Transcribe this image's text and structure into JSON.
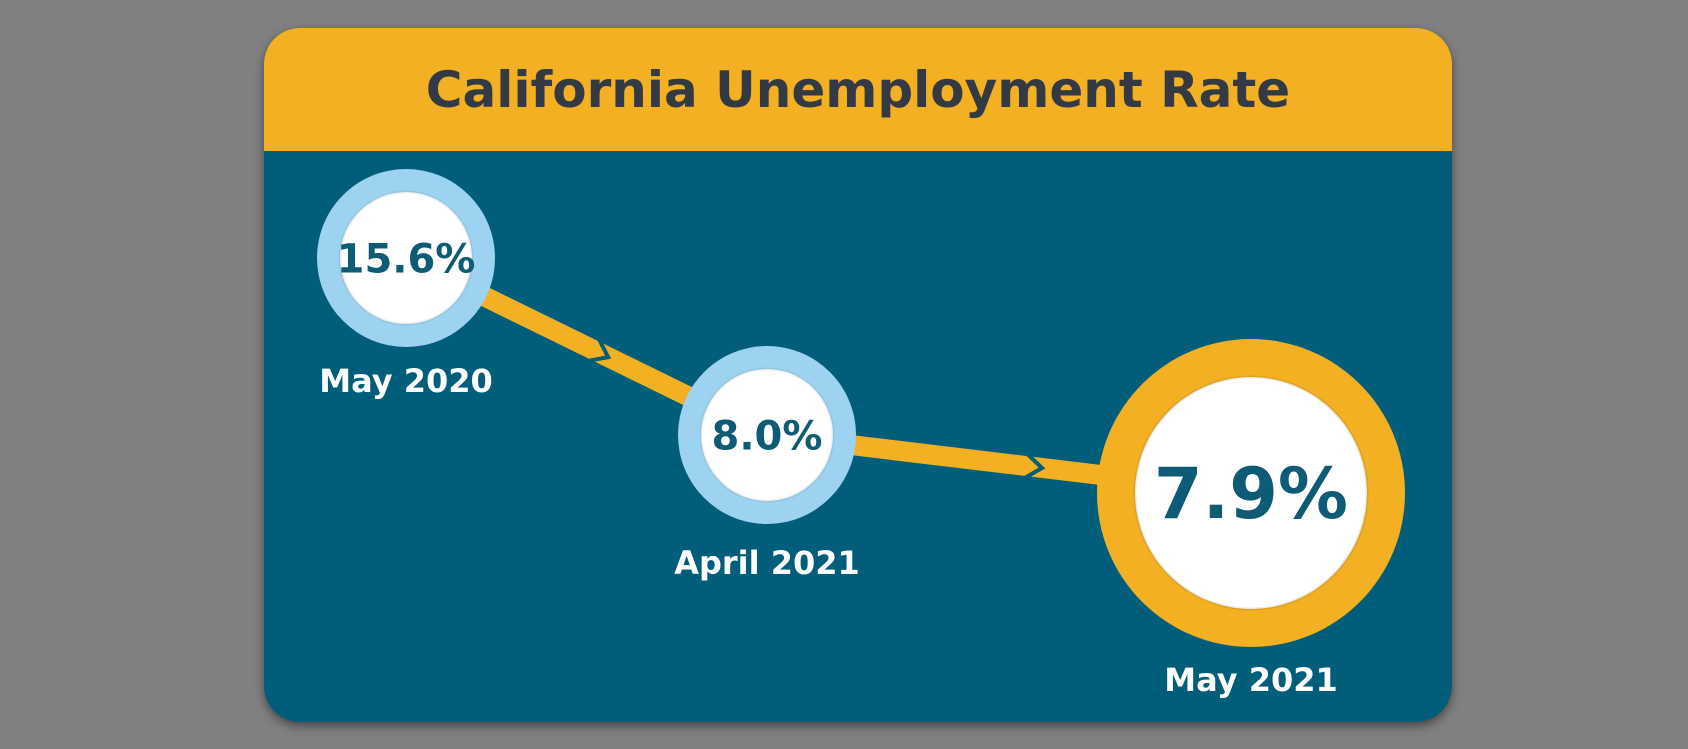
{
  "colors": {
    "page_background": "#808080",
    "card_background": "#005e7a",
    "title_bar": "#f2b022",
    "title_text": "#333a44",
    "connector": "#f2b022",
    "ring_past": "#9dd3f0",
    "ring_current": "#f2b022",
    "value_text": "#0d5b75",
    "label_text": "#ffffff"
  },
  "chart_data": {
    "type": "line",
    "title": "California Unemployment Rate",
    "categories": [
      "May 2020",
      "April 2021",
      "May 2021"
    ],
    "values": [
      15.6,
      8.0,
      7.9
    ],
    "value_labels": [
      "15.6%",
      "8.0%",
      "7.9%"
    ],
    "unit": "%",
    "highlighted": "May 2021",
    "grid": false,
    "legend": "none"
  }
}
